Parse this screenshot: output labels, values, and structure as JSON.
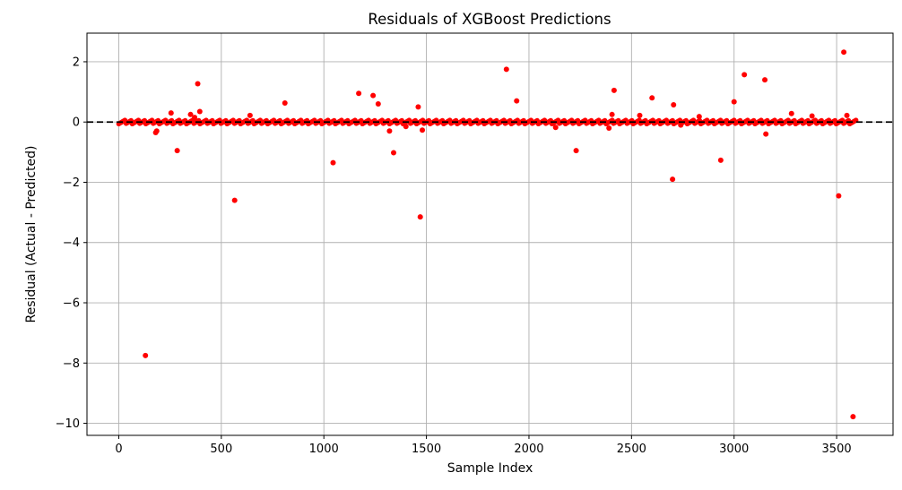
{
  "chart_data": {
    "type": "scatter",
    "title": "Residuals of XGBoost Predictions",
    "xlabel": "Sample Index",
    "ylabel": "Residual (Actual - Predicted)",
    "xlim": [
      -155,
      3775
    ],
    "ylim": [
      -10.4,
      2.95
    ],
    "xticks": [
      0,
      500,
      1000,
      1500,
      2000,
      2500,
      3000,
      3500
    ],
    "xtick_labels": [
      "0",
      "500",
      "1000",
      "1500",
      "2000",
      "2500",
      "3000",
      "3500"
    ],
    "yticks": [
      2,
      0,
      -2,
      -4,
      -6,
      -8,
      -10
    ],
    "ytick_labels": [
      "2",
      "0",
      "−2",
      "−4",
      "−6",
      "−8",
      "−10"
    ],
    "grid": true,
    "point_color": "#ff0000",
    "reference_line": {
      "y": 0,
      "style": "dashed",
      "color": "#000000"
    },
    "x_range": [
      0,
      3595
    ],
    "baseline_value": 0,
    "series": [
      {
        "x": [
          130,
          180,
          185,
          255,
          285,
          350,
          370,
          385,
          395,
          565,
          640,
          810,
          1045,
          1170,
          1240,
          1265,
          1320,
          1340,
          1400,
          1460,
          1470,
          1480,
          1890,
          1940,
          2130,
          2230,
          2390,
          2405,
          2415,
          2540,
          2600,
          2700,
          2705,
          2740,
          2830,
          2935,
          3000,
          3050,
          3150,
          3155,
          3280,
          3380,
          3510,
          3535,
          3550,
          3580
        ],
        "y": [
          -7.75,
          -0.35,
          -0.3,
          0.3,
          -0.95,
          0.25,
          0.15,
          1.27,
          0.35,
          -2.6,
          0.22,
          0.63,
          -1.35,
          0.95,
          0.88,
          0.6,
          -0.3,
          -1.02,
          -0.15,
          0.5,
          -3.15,
          -0.27,
          1.75,
          0.7,
          -0.18,
          -0.95,
          -0.2,
          0.25,
          1.05,
          0.22,
          0.8,
          -1.9,
          0.57,
          -0.1,
          0.18,
          -1.27,
          0.67,
          1.57,
          1.4,
          -0.4,
          0.28,
          0.2,
          -2.45,
          2.32,
          0.22,
          -9.78
        ]
      }
    ]
  }
}
